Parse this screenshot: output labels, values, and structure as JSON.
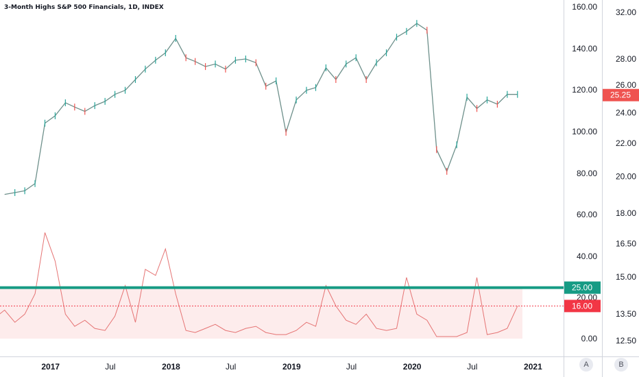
{
  "chart_title": "3-Month Highs S&P 500 Financials, 1D, INDEX",
  "scale_buttons": {
    "a": "A",
    "b": "B"
  },
  "colors": {
    "up": "#26a69a",
    "down": "#ef5350",
    "pane_line": "#e57373",
    "threshold": "#169b84",
    "price_badge": "#ef5350",
    "pane_badge": "#f23645",
    "grid": "#e0e3eb",
    "text": "#131722"
  },
  "chart_data": [
    {
      "type": "line",
      "title": "3-Month Highs S&P 500 Financials, 1D, INDEX",
      "series": [
        {
          "name": "",
          "x": [
            "2016-08",
            "2016-09",
            "2016-10",
            "2016-11",
            "2016-12",
            "2017-01",
            "2017-02",
            "2017-03",
            "2017-04",
            "2017-05",
            "2017-06",
            "2017-07",
            "2017-08",
            "2017-09",
            "2017-10",
            "2017-11",
            "2017-12",
            "2018-01",
            "2018-02",
            "2018-03",
            "2018-04",
            "2018-05",
            "2018-06",
            "2018-07",
            "2018-08",
            "2018-09",
            "2018-10",
            "2018-11",
            "2018-12",
            "2019-01",
            "2019-02",
            "2019-03",
            "2019-04",
            "2019-05",
            "2019-06",
            "2019-07",
            "2019-08",
            "2019-09",
            "2019-10",
            "2019-11",
            "2019-12",
            "2020-01",
            "2020-02",
            "2020-03",
            "2020-04",
            "2020-05",
            "2020-06",
            "2020-07",
            "2020-08",
            "2020-09",
            "2020-10",
            "2020-11"
          ],
          "values": [
            19.0,
            19.1,
            19.2,
            19.6,
            23.3,
            23.8,
            24.7,
            24.4,
            24.1,
            24.5,
            24.8,
            25.3,
            25.6,
            26.4,
            27.2,
            27.9,
            28.5,
            29.7,
            28.1,
            27.8,
            27.4,
            27.6,
            27.2,
            27.9,
            28.0,
            27.7,
            25.9,
            26.3,
            22.7,
            24.9,
            25.6,
            25.8,
            27.3,
            26.4,
            27.6,
            28.1,
            26.4,
            27.7,
            28.5,
            29.8,
            30.3,
            31.0,
            30.4,
            21.6,
            20.3,
            21.9,
            25.1,
            24.3,
            24.9,
            24.6,
            25.3,
            25.3
          ]
        }
      ],
      "price_axis_left_ticks": [
        "160.00",
        "140.00",
        "120.00",
        "100.00",
        "80.00",
        "60.00",
        "40.00",
        "20.00",
        "0.00"
      ],
      "price_axis_right_ticks": [
        "32.00",
        "28.00",
        "26.00",
        "24.00",
        "22.00",
        "20.00",
        "18.00",
        "16.50",
        "15.00",
        "13.50",
        "12.50"
      ],
      "last_price_label": "25.25",
      "x_tick_labels": [
        "2017",
        "Jul",
        "2018",
        "Jul",
        "2019",
        "Jul",
        "2020",
        "Jul",
        "2021"
      ],
      "ylim": [
        12.5,
        32.0
      ],
      "log_scale": true,
      "grid": false
    },
    {
      "type": "line",
      "series": [
        {
          "name": "",
          "x": [
            "2016-07",
            "2016-08",
            "2016-09",
            "2016-10",
            "2016-11",
            "2016-12",
            "2017-01",
            "2017-02",
            "2017-03",
            "2017-04",
            "2017-05",
            "2017-06",
            "2017-07",
            "2017-08",
            "2017-09",
            "2017-10",
            "2017-11",
            "2017-12",
            "2018-01",
            "2018-02",
            "2018-03",
            "2018-04",
            "2018-05",
            "2018-06",
            "2018-07",
            "2018-08",
            "2018-09",
            "2018-10",
            "2018-11",
            "2018-12",
            "2019-01",
            "2019-02",
            "2019-03",
            "2019-04",
            "2019-05",
            "2019-06",
            "2019-07",
            "2019-08",
            "2019-09",
            "2019-10",
            "2019-11",
            "2019-12",
            "2020-01",
            "2020-02",
            "2020-03",
            "2020-04",
            "2020-05",
            "2020-06",
            "2020-07",
            "2020-08",
            "2020-09",
            "2020-10",
            "2020-11"
          ],
          "values": [
            10,
            14,
            8,
            12,
            22,
            52,
            38,
            12,
            6,
            9,
            5,
            4,
            11,
            26,
            8,
            34,
            31,
            44,
            22,
            4,
            3,
            5,
            7,
            4,
            3,
            5,
            6,
            3,
            2,
            2,
            4,
            8,
            6,
            26,
            16,
            9,
            7,
            12,
            5,
            4,
            5,
            30,
            12,
            9,
            1,
            1,
            1,
            3,
            30,
            2,
            3,
            5,
            16
          ]
        }
      ],
      "threshold_labels": [
        "25.00",
        "16.00"
      ],
      "threshold_values": [
        25,
        16
      ],
      "ylim": [
        0,
        60
      ]
    }
  ]
}
